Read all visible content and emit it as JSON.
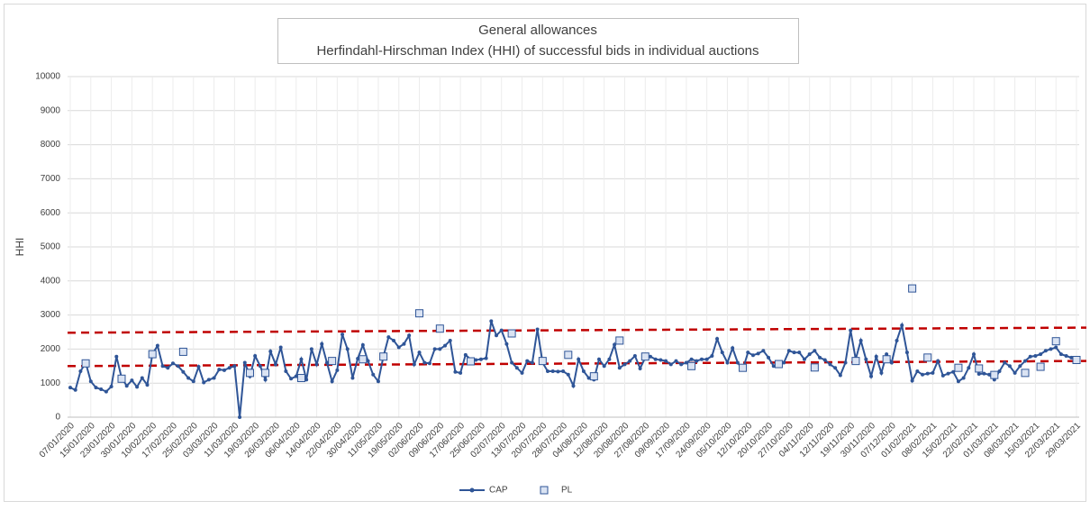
{
  "chart_data": {
    "type": "line",
    "title": "General allowances",
    "subtitle": "Herfindahl-Hirschman Index (HHI) of successful bids in individual auctions",
    "ylabel": "HHI",
    "ylim": [
      0,
      10000
    ],
    "yticks": [
      0,
      1000,
      2000,
      3000,
      4000,
      5000,
      6000,
      7000,
      8000,
      9000,
      10000
    ],
    "grid": true,
    "legend": "bottom",
    "categories": [
      "07/01/2020",
      null,
      null,
      null,
      "15/01/2020",
      null,
      null,
      null,
      "23/01/2020",
      null,
      null,
      null,
      "30/01/2020",
      null,
      null,
      null,
      "10/02/2020",
      null,
      null,
      null,
      "17/02/2020",
      null,
      null,
      null,
      "25/02/2020",
      null,
      null,
      null,
      "03/03/2020",
      null,
      null,
      null,
      "11/03/2020",
      null,
      null,
      null,
      "19/03/2020",
      null,
      null,
      null,
      "26/03/2020",
      null,
      null,
      null,
      "06/04/2020",
      null,
      null,
      null,
      "14/04/2020",
      null,
      null,
      null,
      "22/04/2020",
      null,
      null,
      null,
      "30/04/2020",
      null,
      null,
      null,
      "11/05/2020",
      null,
      null,
      null,
      "19/05/2020",
      null,
      null,
      null,
      "02/06/2020",
      null,
      null,
      null,
      "09/06/2020",
      null,
      null,
      null,
      "17/06/2020",
      null,
      null,
      null,
      "25/06/2020",
      null,
      null,
      null,
      "02/07/2020",
      null,
      null,
      null,
      "13/07/2020",
      null,
      null,
      null,
      "20/07/2020",
      null,
      null,
      null,
      "28/07/2020",
      null,
      null,
      null,
      "04/08/2020",
      null,
      null,
      null,
      "12/08/2020",
      null,
      null,
      null,
      "20/08/2020",
      null,
      null,
      null,
      "27/08/2020",
      null,
      null,
      null,
      "09/09/2020",
      null,
      null,
      null,
      "17/09/2020",
      null,
      null,
      null,
      "24/09/2020",
      null,
      null,
      null,
      "05/10/2020",
      null,
      null,
      null,
      "12/10/2020",
      null,
      null,
      null,
      "20/10/2020",
      null,
      null,
      null,
      "27/10/2020",
      null,
      null,
      null,
      "04/11/2020",
      null,
      null,
      null,
      "12/11/2020",
      null,
      null,
      null,
      "19/11/2020",
      null,
      null,
      null,
      "30/11/2020",
      null,
      null,
      null,
      "07/12/2020",
      null,
      null,
      null,
      "01/02/2021",
      null,
      null,
      null,
      "08/02/2021",
      null,
      null,
      null,
      "15/02/2021",
      null,
      null,
      null,
      "22/02/2021",
      null,
      null,
      null,
      "01/03/2021",
      null,
      null,
      null,
      "08/03/2021",
      null,
      null,
      null,
      "15/03/2021",
      null,
      null,
      null,
      "22/03/2021",
      null,
      null,
      null,
      "29/03/2021"
    ],
    "series": [
      {
        "name": "CAP",
        "color": "#2f5597",
        "style": "line-marker",
        "values": [
          870,
          800,
          1350,
          1600,
          1050,
          870,
          820,
          750,
          900,
          1780,
          1150,
          920,
          1080,
          890,
          1150,
          950,
          1850,
          2100,
          1500,
          1450,
          1580,
          1500,
          1330,
          1150,
          1050,
          1480,
          1020,
          1100,
          1150,
          1400,
          1380,
          1450,
          1500,
          0,
          1600,
          1200,
          1800,
          1500,
          1100,
          1930,
          1550,
          2050,
          1350,
          1130,
          1200,
          1700,
          1100,
          2000,
          1550,
          2150,
          1600,
          1050,
          1380,
          2430,
          2000,
          1150,
          1720,
          2120,
          1650,
          1250,
          1050,
          1780,
          2350,
          2250,
          2050,
          2150,
          2400,
          1550,
          1900,
          1600,
          1580,
          2000,
          2000,
          2100,
          2250,
          1330,
          1300,
          1830,
          1700,
          1680,
          1700,
          1730,
          2820,
          2400,
          2550,
          2150,
          1600,
          1450,
          1300,
          1650,
          1600,
          2580,
          1600,
          1350,
          1350,
          1340,
          1350,
          1250,
          920,
          1700,
          1350,
          1150,
          1100,
          1700,
          1500,
          1700,
          2130,
          1450,
          1550,
          1650,
          1800,
          1430,
          1750,
          1780,
          1700,
          1680,
          1650,
          1550,
          1650,
          1550,
          1600,
          1700,
          1650,
          1700,
          1700,
          1800,
          2300,
          1900,
          1600,
          2030,
          1600,
          1400,
          1900,
          1820,
          1870,
          1950,
          1750,
          1500,
          1550,
          1600,
          1950,
          1900,
          1900,
          1700,
          1850,
          1950,
          1750,
          1680,
          1550,
          1450,
          1230,
          1600,
          2550,
          1700,
          2250,
          1700,
          1200,
          1780,
          1300,
          1850,
          1600,
          2250,
          2700,
          1900,
          1070,
          1350,
          1250,
          1280,
          1300,
          1650,
          1220,
          1280,
          1330,
          1050,
          1150,
          1450,
          1850,
          1270,
          1280,
          1250,
          1100,
          1350,
          1600,
          1500,
          1300,
          1500,
          1650,
          1780,
          1800,
          1850,
          1950,
          2000,
          2050,
          1850,
          1800,
          1750,
          1700
        ]
      },
      {
        "name": "PL",
        "color": "#2f5597",
        "fill": "#dae3f3",
        "style": "square",
        "values": [
          null,
          null,
          null,
          1580,
          null,
          null,
          null,
          null,
          null,
          null,
          1130,
          null,
          null,
          null,
          null,
          null,
          1850,
          null,
          null,
          null,
          null,
          null,
          1920,
          null,
          null,
          null,
          null,
          null,
          null,
          null,
          null,
          null,
          null,
          null,
          null,
          1300,
          null,
          null,
          1300,
          null,
          null,
          null,
          null,
          null,
          null,
          1150,
          null,
          null,
          null,
          null,
          null,
          1650,
          null,
          null,
          null,
          null,
          null,
          1700,
          null,
          null,
          null,
          1780,
          null,
          null,
          null,
          null,
          null,
          null,
          3050,
          null,
          null,
          null,
          2600,
          null,
          null,
          null,
          null,
          null,
          1640,
          null,
          null,
          null,
          null,
          null,
          null,
          null,
          2460,
          null,
          null,
          null,
          null,
          null,
          1650,
          null,
          null,
          null,
          null,
          1830,
          null,
          null,
          null,
          null,
          1200,
          null,
          null,
          null,
          null,
          2250,
          null,
          null,
          null,
          null,
          1780,
          null,
          null,
          null,
          null,
          null,
          null,
          null,
          null,
          1500,
          null,
          null,
          null,
          null,
          null,
          null,
          null,
          null,
          null,
          1450,
          null,
          null,
          null,
          null,
          null,
          null,
          1560,
          null,
          null,
          null,
          null,
          null,
          null,
          1460,
          null,
          null,
          null,
          null,
          null,
          null,
          null,
          1650,
          null,
          null,
          null,
          null,
          null,
          1700,
          null,
          null,
          null,
          null,
          3780,
          null,
          null,
          1750,
          null,
          null,
          null,
          null,
          null,
          1450,
          null,
          null,
          null,
          1430,
          null,
          null,
          1240,
          null,
          null,
          null,
          null,
          null,
          1300,
          null,
          null,
          1480,
          null,
          null,
          2230,
          null,
          null,
          null,
          1680
        ]
      }
    ],
    "lines": [
      {
        "color": "#c00000",
        "y_start": 1500,
        "y_end": 1650
      },
      {
        "color": "#c00000",
        "y_start": 2480,
        "y_end": 2630
      }
    ]
  }
}
